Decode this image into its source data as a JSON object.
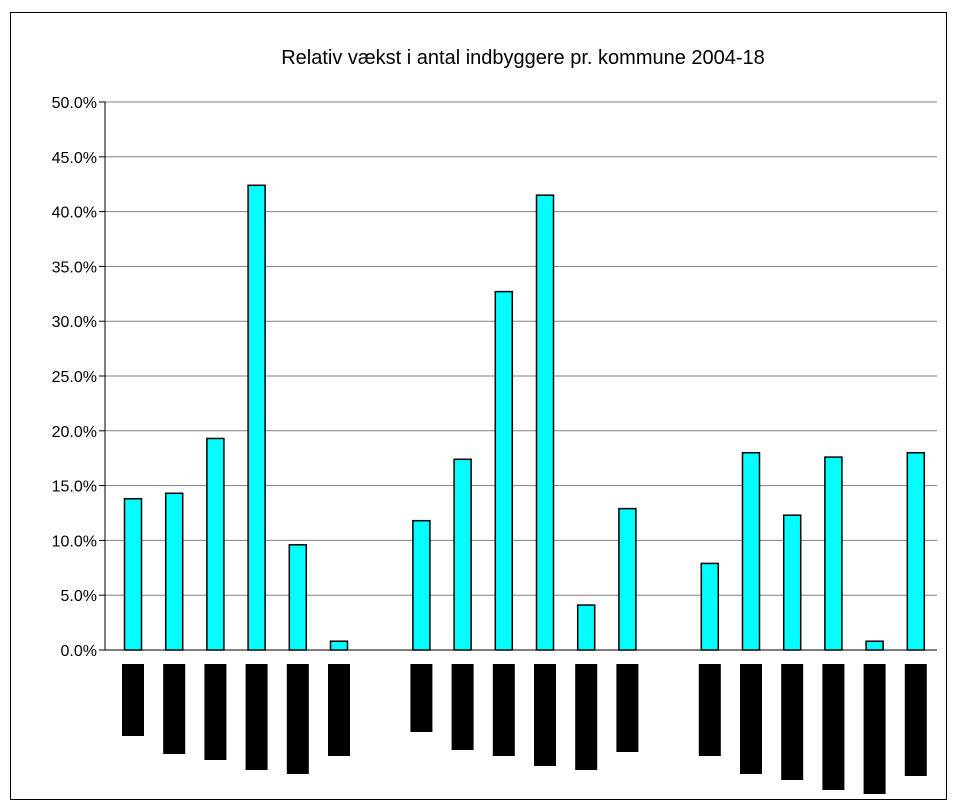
{
  "chart_data": {
    "type": "bar",
    "title": "Relativ vækst i antal indbyggere pr. kommune 2004-18",
    "xlabel": "",
    "ylabel": "",
    "ylim": [
      0,
      50
    ],
    "yticks": [
      "0.0%",
      "5.0%",
      "10.0%",
      "15.0%",
      "20.0%",
      "25.0%",
      "30.0%",
      "35.0%",
      "40.0%",
      "45.0%",
      "50.0%"
    ],
    "grid": true,
    "legend": "none",
    "category_labels": "redacted",
    "groups": [
      [
        13.8,
        14.3,
        19.3,
        42.4,
        9.6,
        0.8
      ],
      [
        11.8,
        17.4,
        32.7,
        41.5,
        4.1,
        12.9
      ],
      [
        7.9,
        18.0,
        12.3,
        17.6,
        0.8,
        18.0
      ]
    ],
    "redaction_lengths": [
      [
        72,
        90,
        96,
        106,
        110,
        92
      ],
      [
        68,
        86,
        92,
        102,
        106,
        88
      ],
      [
        92,
        110,
        116,
        126,
        130,
        112
      ]
    ],
    "colors": {
      "bar_fill": "#00ffff",
      "bar_stroke": "#000000",
      "grid": "#808080",
      "redaction": "#000000"
    }
  }
}
